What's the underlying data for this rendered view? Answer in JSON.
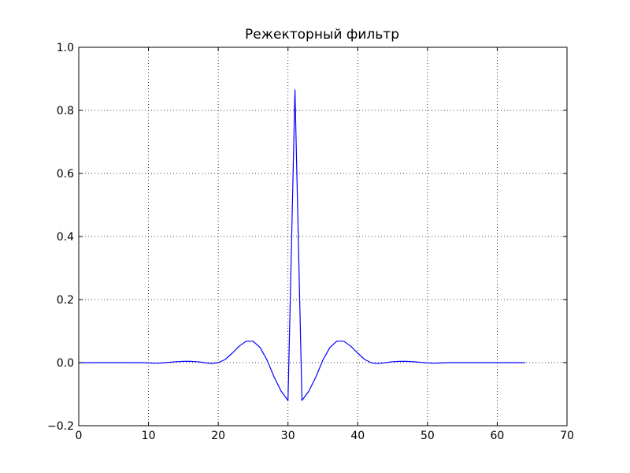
{
  "chart_data": {
    "type": "line",
    "title": "Режекторный фильтр",
    "xlabel": "",
    "ylabel": "",
    "xlim": [
      0,
      70
    ],
    "ylim": [
      -0.2,
      1.0
    ],
    "xticks": [
      0,
      10,
      20,
      30,
      40,
      50,
      60,
      70
    ],
    "yticks": [
      -0.2,
      0.0,
      0.2,
      0.4,
      0.6,
      0.8,
      1.0
    ],
    "xtick_labels": [
      "0",
      "10",
      "20",
      "30",
      "40",
      "50",
      "60",
      "70"
    ],
    "ytick_labels": [
      "−0.2",
      "0.0",
      "0.2",
      "0.4",
      "0.6",
      "0.8",
      "1.0"
    ],
    "grid": true,
    "line_color": "#0000ff",
    "series": [
      {
        "x": [
          0,
          1,
          2,
          3,
          4,
          5,
          6,
          7,
          8,
          9,
          10,
          11,
          12,
          13,
          14,
          15,
          16,
          17,
          18,
          19,
          20,
          21,
          22,
          23,
          24,
          25,
          26,
          27,
          28,
          29,
          30,
          31,
          32,
          33,
          34,
          35,
          36,
          37,
          38,
          39,
          40,
          41,
          42,
          43,
          44,
          45,
          46,
          47,
          48,
          49,
          50,
          51,
          52,
          53,
          54,
          55,
          56,
          57,
          58,
          59,
          60,
          61,
          62,
          63,
          64
        ],
        "y": [
          0,
          0,
          0,
          0,
          0,
          0,
          0,
          0,
          0,
          0,
          -0.001,
          -0.002,
          -0.001,
          0.001,
          0.003,
          0.004,
          0.004,
          0.003,
          0.0,
          -0.003,
          0.0,
          0.01,
          0.03,
          0.052,
          0.068,
          0.068,
          0.048,
          0.008,
          -0.045,
          -0.09,
          -0.12,
          0.865,
          -0.12,
          -0.09,
          -0.045,
          0.008,
          0.048,
          0.068,
          0.068,
          0.052,
          0.03,
          0.01,
          -0.001,
          -0.003,
          0.0,
          0.003,
          0.004,
          0.004,
          0.003,
          0.001,
          -0.001,
          -0.002,
          -0.001,
          0,
          0,
          0,
          0,
          0,
          0,
          0,
          0,
          0,
          0,
          0,
          0
        ]
      }
    ]
  }
}
